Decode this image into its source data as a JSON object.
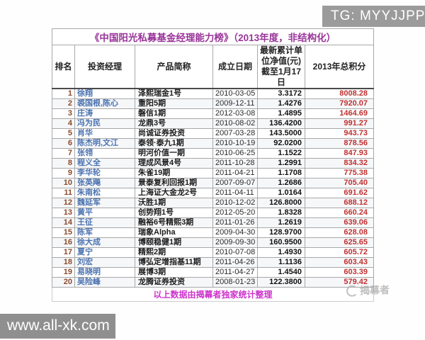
{
  "overlay": {
    "tg_label": "TG: MYYJJPP",
    "site_label": "www.all-xk.com",
    "stamp_text": "揭幕者"
  },
  "table": {
    "title": "《中国阳光私募基金经理能力榜》（2013年度，非结构化）",
    "columns": [
      "排名",
      "投资经理",
      "产品简称",
      "成立日期",
      "最新累计单位净值(元)截至1月17日",
      "2013年总积分"
    ],
    "rows": [
      [
        "1",
        "徐翔",
        "泽熙瑞金1号",
        "2010-03-05",
        "3.3172",
        "8008.28"
      ],
      [
        "2",
        "裘国根,陈心",
        "重阳5期",
        "2009-12-11",
        "1.4276",
        "7920.07"
      ],
      [
        "3",
        "庄涛",
        "磐信1期",
        "2012-03-08",
        "1.4895",
        "1464.69"
      ],
      [
        "4",
        "冯为民",
        "龙鼎3号",
        "2010-08-02",
        "136.4200",
        "991.27"
      ],
      [
        "5",
        "肖华",
        "尚诚证券投资",
        "2007-03-28",
        "143.5000",
        "943.73"
      ],
      [
        "6",
        "陈杰明,文江",
        "泰领·泰九1期",
        "2010-10-19",
        "92.0200",
        "878.56"
      ],
      [
        "7",
        "张翎",
        "明河价值一期",
        "2010-06-25",
        "1.1522",
        "847.93"
      ],
      [
        "8",
        "程义全",
        "理成风景4号",
        "2011-10-28",
        "1.2991",
        "834.32"
      ],
      [
        "9",
        "李华轮",
        "朱雀19期",
        "2011-04-21",
        "1.1708",
        "775.38"
      ],
      [
        "10",
        "张英飚",
        "景泰复利回报1期",
        "2007-09-07",
        "1.2686",
        "705.40"
      ],
      [
        "11",
        "朱南松",
        "上海证大金龙2号",
        "2011-04-11",
        "1.0164",
        "691.62"
      ],
      [
        "12",
        "魏延军",
        "沃胜1期",
        "2010-12-02",
        "126.8000",
        "688.12"
      ],
      [
        "13",
        "黄平",
        "创势翔1号",
        "2012-05-20",
        "1.8328",
        "660.24"
      ],
      [
        "14",
        "王征",
        "融裕6号精熙3期",
        "2011-01-26",
        "1.2619",
        "639.06"
      ],
      [
        "15",
        "陈军",
        "瑞象Alpha",
        "2009-04-30",
        "128.9700",
        "628.08"
      ],
      [
        "16",
        "徐大成",
        "博颐稳健1期",
        "2009-09-30",
        "160.9500",
        "625.65"
      ],
      [
        "17",
        "夏宁",
        "精熙2期",
        "2010-07-08",
        "1.4930",
        "605.72"
      ],
      [
        "18",
        "刘宏",
        "博弘定增指基11期",
        "2011-04-26",
        "1.1136",
        "603.43"
      ],
      [
        "19",
        "易晓明",
        "展博3期",
        "2011-04-27",
        "1.4540",
        "603.39"
      ],
      [
        "20",
        "吴险峰",
        "龙腾证券投资",
        "2008-01-23",
        "122.3800",
        "579.42"
      ]
    ],
    "footer": "以上数据由揭幕者独家统计整理"
  },
  "colors": {
    "title_text": "#993399",
    "footer_text": "#cc33cc",
    "rank_text": "#8b4a2a",
    "manager_text": "#4a72b0",
    "score_text": "#c03030",
    "badge_bg": "#9b9b9b",
    "border": "#a8a8a8"
  }
}
